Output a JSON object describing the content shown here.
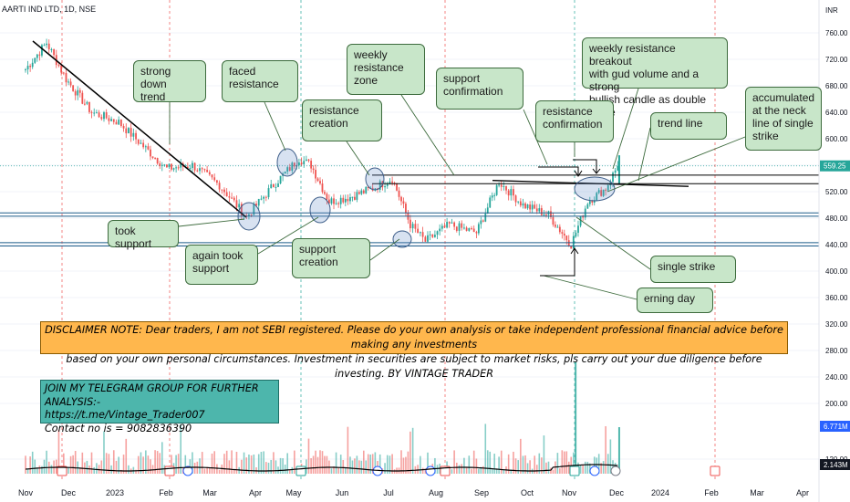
{
  "symbol": "AARTI IND LTD, 1D, NSE",
  "currency": "INR",
  "price_badge": "559.25",
  "volume_badges": [
    "6.771M",
    "2.143M"
  ],
  "colors": {
    "up": "#26a69a",
    "down": "#ef5350",
    "callout_bg": "#c8e6c9",
    "disclaimer_bg": "#ffb74d",
    "telegram_bg": "#4db6ac",
    "line": "#000000"
  },
  "callouts": [
    {
      "id": "strong-down-trend",
      "text": "strong down\ntrend"
    },
    {
      "id": "faced-resistance",
      "text": "faced\nresistance"
    },
    {
      "id": "weekly-resistance-zone",
      "text": "weekly\nresistance\nzone"
    },
    {
      "id": "support-confirmation",
      "text": "support\nconfirmation"
    },
    {
      "id": "weekly-breakout",
      "text": "weekly resistance breakout\nwith gud volume and a strong\nbullish candle as double strike"
    },
    {
      "id": "resistance-creation",
      "text": "resistance\ncreation"
    },
    {
      "id": "resistance-confirmation",
      "text": "resistance\nconfirmation"
    },
    {
      "id": "trend-line",
      "text": "trend line"
    },
    {
      "id": "accumulated",
      "text": "accumulated\nat the neck\nline of single\nstrike"
    },
    {
      "id": "took-support",
      "text": "took support"
    },
    {
      "id": "again-took-support",
      "text": "again took\nsupport"
    },
    {
      "id": "support-creation",
      "text": "support\ncreation"
    },
    {
      "id": "single-strike",
      "text": "single strike"
    },
    {
      "id": "erning-day",
      "text": "erning day"
    }
  ],
  "disclaimer": "DISCLAIMER NOTE: Dear traders, I am not SEBI registered. Please do your own analysis or take independent professional financial advice before making any investments\nbased on your own personal circumstances. Investment in securities are subject to market risks, pls carry out your due diligence before investing. BY VINTAGE TRADER",
  "telegram": "JOIN MY TELEGRAM  GROUP FOR FURTHER ANALYSIS:-\nhttps://t.me/Vintage_Trader007\nContact no is = 9082836390",
  "chart_data": {
    "type": "candlestick",
    "title": "AARTI IND LTD, 1D, NSE",
    "y_ticks": [
      760,
      720,
      680,
      640,
      600,
      560,
      520,
      480,
      440,
      400,
      360,
      320,
      280,
      240,
      200,
      120
    ],
    "ylim": [
      120,
      760
    ],
    "x_ticks": [
      "Nov",
      "Dec",
      "2023",
      "Feb",
      "Mar",
      "Apr",
      "May",
      "Jun",
      "Jul",
      "Aug",
      "Sep",
      "Oct",
      "Nov",
      "Dec",
      "2024",
      "Feb",
      "Mar",
      "Apr"
    ],
    "horizontal_levels": [
      545,
      532,
      488,
      483,
      443,
      438
    ],
    "close_path": [
      {
        "date": "2022-11-01",
        "close": 705
      },
      {
        "date": "2022-11-15",
        "close": 745
      },
      {
        "date": "2022-11-28",
        "close": 690
      },
      {
        "date": "2022-12-15",
        "close": 640
      },
      {
        "date": "2023-01-02",
        "close": 625
      },
      {
        "date": "2023-01-20",
        "close": 585
      },
      {
        "date": "2023-02-03",
        "close": 555
      },
      {
        "date": "2023-02-20",
        "close": 560
      },
      {
        "date": "2023-03-10",
        "close": 530
      },
      {
        "date": "2023-03-28",
        "close": 482
      },
      {
        "date": "2023-04-15",
        "close": 530
      },
      {
        "date": "2023-05-02",
        "close": 570
      },
      {
        "date": "2023-05-10",
        "close": 560
      },
      {
        "date": "2023-05-22",
        "close": 505
      },
      {
        "date": "2023-06-05",
        "close": 512
      },
      {
        "date": "2023-06-20",
        "close": 525
      },
      {
        "date": "2023-07-03",
        "close": 540
      },
      {
        "date": "2023-07-15",
        "close": 470
      },
      {
        "date": "2023-07-25",
        "close": 445
      },
      {
        "date": "2023-08-10",
        "close": 470
      },
      {
        "date": "2023-08-28",
        "close": 458
      },
      {
        "date": "2023-09-12",
        "close": 535
      },
      {
        "date": "2023-09-28",
        "close": 500
      },
      {
        "date": "2023-10-15",
        "close": 485
      },
      {
        "date": "2023-10-30",
        "close": 440
      },
      {
        "date": "2023-11-10",
        "close": 505
      },
      {
        "date": "2023-11-22",
        "close": 525
      },
      {
        "date": "2023-11-30",
        "close": 559
      }
    ],
    "volume_spikes": [
      {
        "date": "2023-11-02",
        "value": 260
      },
      {
        "date": "2023-12-01",
        "value": 6.771
      }
    ]
  }
}
